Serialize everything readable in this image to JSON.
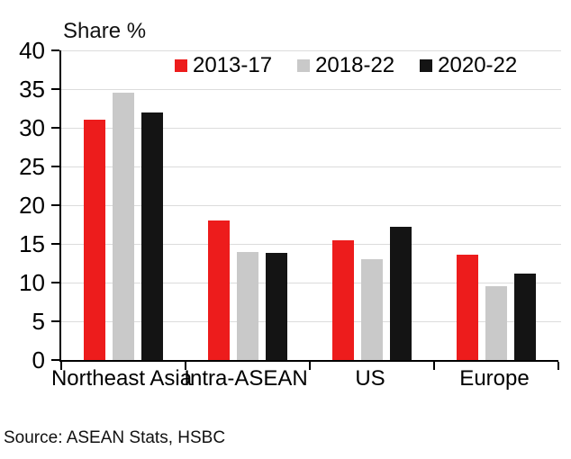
{
  "chart_data": {
    "type": "bar",
    "title": "Share %",
    "categories": [
      "Northeast Asia",
      "Intra-ASEAN",
      "US",
      "Europe"
    ],
    "series": [
      {
        "name": "2013-17",
        "color": "#ed1c1c",
        "values": [
          31,
          18,
          15.5,
          13.6
        ]
      },
      {
        "name": "2018-22",
        "color": "#c9c9c9",
        "values": [
          34.5,
          14,
          13,
          9.5
        ]
      },
      {
        "name": "2020-22",
        "color": "#141414",
        "values": [
          32,
          13.8,
          17.2,
          11.2
        ]
      }
    ],
    "ylabel": "Share %",
    "ylim": [
      0,
      40
    ],
    "yticks": [
      0,
      5,
      10,
      15,
      20,
      25,
      30,
      35,
      40
    ],
    "grid": true,
    "legend_position": "top"
  },
  "source": "Source: ASEAN Stats, HSBC",
  "colors": {
    "background": "#ffffff",
    "gridline": "#dcdcdc",
    "axis": "#000000",
    "text": "#000000"
  }
}
